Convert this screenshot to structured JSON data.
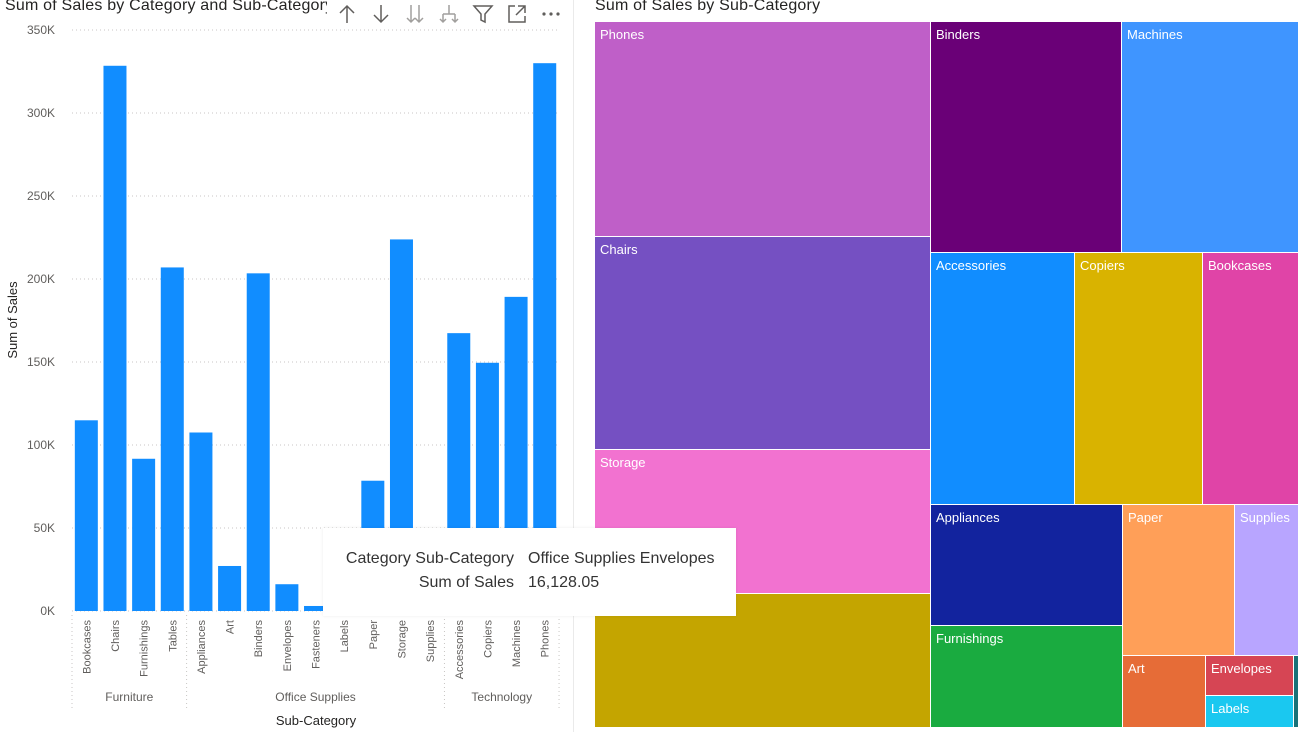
{
  "bar_visual": {
    "title": "Sum of Sales by Category and Sub-Category",
    "icons": [
      "arrow-up-icon",
      "arrow-down-icon",
      "expand-all-down-icon",
      "drill-down-fork-icon",
      "filter-icon",
      "focus-mode-icon",
      "more-options-icon"
    ]
  },
  "treemap_visual": {
    "title": "Sum of Sales by Sub-Category"
  },
  "tooltip": {
    "row1_label": "Category Sub-Category",
    "row1_value": "Office Supplies Envelopes",
    "row2_label": "Sum of Sales",
    "row2_value": "16,128.05"
  },
  "chart_data": [
    {
      "type": "bar",
      "title": "Sum of Sales by Category and Sub-Category",
      "xlabel": "Sub-Category",
      "ylabel": "Sum of Sales",
      "ylim": [
        0,
        350000
      ],
      "yticks": [
        "0K",
        "50K",
        "100K",
        "150K",
        "200K",
        "250K",
        "300K",
        "350K"
      ],
      "ytick_values": [
        0,
        50000,
        100000,
        150000,
        200000,
        250000,
        300000,
        350000
      ],
      "grid": true,
      "color": "#118DFF",
      "groups": [
        {
          "name": "Furniture",
          "count": 4
        },
        {
          "name": "Office Supplies",
          "count": 9
        },
        {
          "name": "Technology",
          "count": 4
        }
      ],
      "categories": [
        "Bookcases",
        "Chairs",
        "Furnishings",
        "Tables",
        "Appliances",
        "Art",
        "Binders",
        "Envelopes",
        "Fasteners",
        "Labels",
        "Paper",
        "Storage",
        "Supplies",
        "Accessories",
        "Copiers",
        "Machines",
        "Phones"
      ],
      "values": [
        114880,
        328449,
        91705,
        206966,
        107532,
        27119,
        203413,
        16128.05,
        3024,
        12486,
        78479,
        223844,
        46674,
        167380,
        149528,
        189239,
        330007
      ]
    },
    {
      "type": "treemap",
      "title": "Sum of Sales by Sub-Category",
      "categories": [
        "Phones",
        "Binders",
        "Machines",
        "Chairs",
        "Accessories",
        "Copiers",
        "Bookcases",
        "Storage",
        "Appliances",
        "Paper",
        "Supplies",
        "Tables",
        "Furnishings",
        "Art",
        "Envelopes",
        "Labels",
        "Fasteners"
      ],
      "labels_shown": [
        "Phones",
        "Binders",
        "Machines",
        "Chairs",
        "Accessories",
        "Copiers",
        "Bookcases",
        "Storage",
        "Appliances",
        "Paper",
        "Supplies",
        "",
        "Furnishings",
        "Art",
        "Envelopes",
        "Labels",
        ""
      ],
      "colors": [
        "#BF5FC8",
        "#6A0077",
        "#3F95FF",
        "#7550C2",
        "#118DFF",
        "#D9B300",
        "#E044A7",
        "#F272D0",
        "#12239E",
        "#FF9F58",
        "#B8A5FF",
        "#C4A500",
        "#1AAB40",
        "#E66C37",
        "#D64554",
        "#1AC8F0",
        "#197278"
      ]
    }
  ]
}
